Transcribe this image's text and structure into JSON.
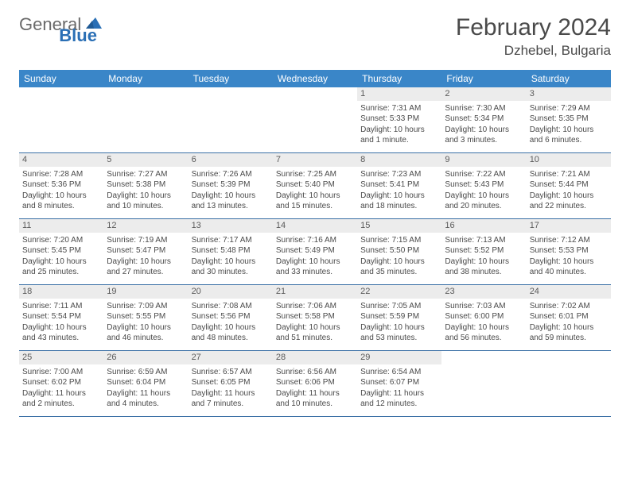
{
  "brand": {
    "part1": "General",
    "part2": "Blue"
  },
  "title": "February 2024",
  "location": "Dzhebel, Bulgaria",
  "colors": {
    "header_bg": "#3a86c8",
    "header_text": "#ffffff",
    "daynum_bg": "#ececec",
    "text": "#4a4a4a",
    "rule": "#3a6fa5",
    "logo_gray": "#6a6a6a",
    "logo_blue": "#2a6fb5"
  },
  "typography": {
    "title_fontsize": 30,
    "location_fontsize": 17,
    "dayheader_fontsize": 12,
    "cell_fontsize": 10
  },
  "dayNames": [
    "Sunday",
    "Monday",
    "Tuesday",
    "Wednesday",
    "Thursday",
    "Friday",
    "Saturday"
  ],
  "weeks": [
    [
      {
        "n": "",
        "sr": "",
        "ss": "",
        "dl": ""
      },
      {
        "n": "",
        "sr": "",
        "ss": "",
        "dl": ""
      },
      {
        "n": "",
        "sr": "",
        "ss": "",
        "dl": ""
      },
      {
        "n": "",
        "sr": "",
        "ss": "",
        "dl": ""
      },
      {
        "n": "1",
        "sr": "Sunrise: 7:31 AM",
        "ss": "Sunset: 5:33 PM",
        "dl": "Daylight: 10 hours and 1 minute."
      },
      {
        "n": "2",
        "sr": "Sunrise: 7:30 AM",
        "ss": "Sunset: 5:34 PM",
        "dl": "Daylight: 10 hours and 3 minutes."
      },
      {
        "n": "3",
        "sr": "Sunrise: 7:29 AM",
        "ss": "Sunset: 5:35 PM",
        "dl": "Daylight: 10 hours and 6 minutes."
      }
    ],
    [
      {
        "n": "4",
        "sr": "Sunrise: 7:28 AM",
        "ss": "Sunset: 5:36 PM",
        "dl": "Daylight: 10 hours and 8 minutes."
      },
      {
        "n": "5",
        "sr": "Sunrise: 7:27 AM",
        "ss": "Sunset: 5:38 PM",
        "dl": "Daylight: 10 hours and 10 minutes."
      },
      {
        "n": "6",
        "sr": "Sunrise: 7:26 AM",
        "ss": "Sunset: 5:39 PM",
        "dl": "Daylight: 10 hours and 13 minutes."
      },
      {
        "n": "7",
        "sr": "Sunrise: 7:25 AM",
        "ss": "Sunset: 5:40 PM",
        "dl": "Daylight: 10 hours and 15 minutes."
      },
      {
        "n": "8",
        "sr": "Sunrise: 7:23 AM",
        "ss": "Sunset: 5:41 PM",
        "dl": "Daylight: 10 hours and 18 minutes."
      },
      {
        "n": "9",
        "sr": "Sunrise: 7:22 AM",
        "ss": "Sunset: 5:43 PM",
        "dl": "Daylight: 10 hours and 20 minutes."
      },
      {
        "n": "10",
        "sr": "Sunrise: 7:21 AM",
        "ss": "Sunset: 5:44 PM",
        "dl": "Daylight: 10 hours and 22 minutes."
      }
    ],
    [
      {
        "n": "11",
        "sr": "Sunrise: 7:20 AM",
        "ss": "Sunset: 5:45 PM",
        "dl": "Daylight: 10 hours and 25 minutes."
      },
      {
        "n": "12",
        "sr": "Sunrise: 7:19 AM",
        "ss": "Sunset: 5:47 PM",
        "dl": "Daylight: 10 hours and 27 minutes."
      },
      {
        "n": "13",
        "sr": "Sunrise: 7:17 AM",
        "ss": "Sunset: 5:48 PM",
        "dl": "Daylight: 10 hours and 30 minutes."
      },
      {
        "n": "14",
        "sr": "Sunrise: 7:16 AM",
        "ss": "Sunset: 5:49 PM",
        "dl": "Daylight: 10 hours and 33 minutes."
      },
      {
        "n": "15",
        "sr": "Sunrise: 7:15 AM",
        "ss": "Sunset: 5:50 PM",
        "dl": "Daylight: 10 hours and 35 minutes."
      },
      {
        "n": "16",
        "sr": "Sunrise: 7:13 AM",
        "ss": "Sunset: 5:52 PM",
        "dl": "Daylight: 10 hours and 38 minutes."
      },
      {
        "n": "17",
        "sr": "Sunrise: 7:12 AM",
        "ss": "Sunset: 5:53 PM",
        "dl": "Daylight: 10 hours and 40 minutes."
      }
    ],
    [
      {
        "n": "18",
        "sr": "Sunrise: 7:11 AM",
        "ss": "Sunset: 5:54 PM",
        "dl": "Daylight: 10 hours and 43 minutes."
      },
      {
        "n": "19",
        "sr": "Sunrise: 7:09 AM",
        "ss": "Sunset: 5:55 PM",
        "dl": "Daylight: 10 hours and 46 minutes."
      },
      {
        "n": "20",
        "sr": "Sunrise: 7:08 AM",
        "ss": "Sunset: 5:56 PM",
        "dl": "Daylight: 10 hours and 48 minutes."
      },
      {
        "n": "21",
        "sr": "Sunrise: 7:06 AM",
        "ss": "Sunset: 5:58 PM",
        "dl": "Daylight: 10 hours and 51 minutes."
      },
      {
        "n": "22",
        "sr": "Sunrise: 7:05 AM",
        "ss": "Sunset: 5:59 PM",
        "dl": "Daylight: 10 hours and 53 minutes."
      },
      {
        "n": "23",
        "sr": "Sunrise: 7:03 AM",
        "ss": "Sunset: 6:00 PM",
        "dl": "Daylight: 10 hours and 56 minutes."
      },
      {
        "n": "24",
        "sr": "Sunrise: 7:02 AM",
        "ss": "Sunset: 6:01 PM",
        "dl": "Daylight: 10 hours and 59 minutes."
      }
    ],
    [
      {
        "n": "25",
        "sr": "Sunrise: 7:00 AM",
        "ss": "Sunset: 6:02 PM",
        "dl": "Daylight: 11 hours and 2 minutes."
      },
      {
        "n": "26",
        "sr": "Sunrise: 6:59 AM",
        "ss": "Sunset: 6:04 PM",
        "dl": "Daylight: 11 hours and 4 minutes."
      },
      {
        "n": "27",
        "sr": "Sunrise: 6:57 AM",
        "ss": "Sunset: 6:05 PM",
        "dl": "Daylight: 11 hours and 7 minutes."
      },
      {
        "n": "28",
        "sr": "Sunrise: 6:56 AM",
        "ss": "Sunset: 6:06 PM",
        "dl": "Daylight: 11 hours and 10 minutes."
      },
      {
        "n": "29",
        "sr": "Sunrise: 6:54 AM",
        "ss": "Sunset: 6:07 PM",
        "dl": "Daylight: 11 hours and 12 minutes."
      },
      {
        "n": "",
        "sr": "",
        "ss": "",
        "dl": ""
      },
      {
        "n": "",
        "sr": "",
        "ss": "",
        "dl": ""
      }
    ]
  ]
}
